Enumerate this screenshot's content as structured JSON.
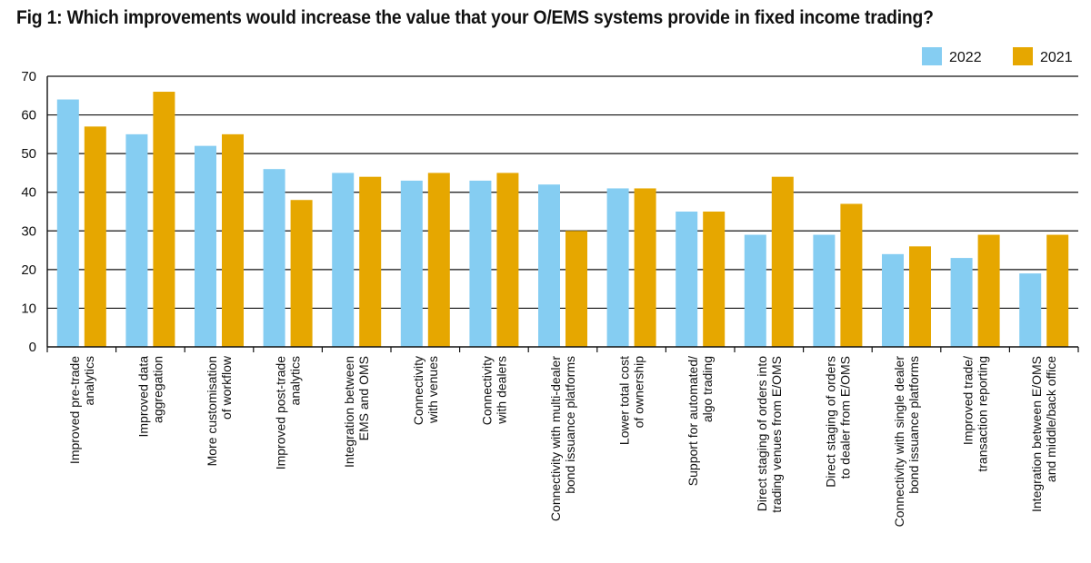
{
  "chart_data": {
    "type": "bar",
    "title": "Fig 1: Which improvements would increase the value that your O/EMS systems provide in fixed income trading?",
    "categories": [
      [
        "Improved pre-trade",
        "analytics"
      ],
      [
        "Improved data",
        "aggregation"
      ],
      [
        "More customisation",
        "of workflow"
      ],
      [
        "Improved post-trade",
        "analytics"
      ],
      [
        "Integration between",
        "EMS and OMS"
      ],
      [
        "Connectivity",
        "with venues"
      ],
      [
        "Connectivity",
        "with dealers"
      ],
      [
        "Connectivity with multi-dealer",
        "bond issuance platforms"
      ],
      [
        "Lower total cost",
        "of ownership"
      ],
      [
        "Support for automated/",
        "algo trading"
      ],
      [
        "Direct staging of orders into",
        "trading venues from E/OMS"
      ],
      [
        "Direct staging of orders",
        "to dealer from E/OMS"
      ],
      [
        "Connectivity with single dealer",
        "bond issuance platforms"
      ],
      [
        "Improved trade/",
        "transaction reporting"
      ],
      [
        "Integration between E/OMS",
        "and middle/back office"
      ]
    ],
    "series": [
      {
        "name": "2022",
        "color": "#85cdf2",
        "values": [
          64,
          55,
          52,
          46,
          45,
          43,
          43,
          42,
          41,
          35,
          29,
          29,
          24,
          23,
          19
        ]
      },
      {
        "name": "2021",
        "color": "#e6a700",
        "values": [
          57,
          66,
          55,
          38,
          44,
          45,
          45,
          30,
          41,
          35,
          44,
          37,
          26,
          29,
          29
        ]
      }
    ],
    "ylim": [
      0,
      70
    ],
    "yticks": [
      0,
      10,
      20,
      30,
      40,
      50,
      60,
      70
    ],
    "grid": true,
    "legend_position": "top-right"
  }
}
